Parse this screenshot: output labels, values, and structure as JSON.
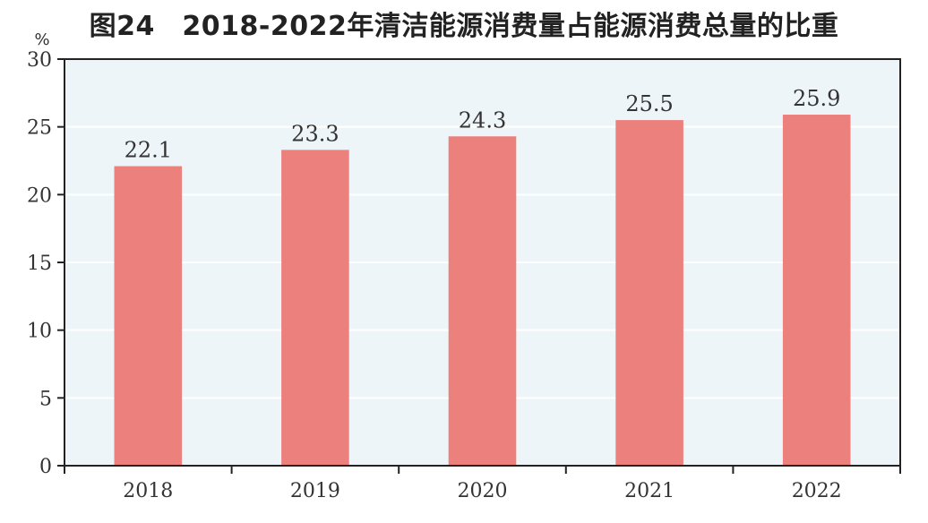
{
  "chart_data": {
    "type": "bar",
    "title": "图24　2018-2022年清洁能源消费量占能源消费总量的比重",
    "unit": "%",
    "categories": [
      "2018",
      "2019",
      "2020",
      "2021",
      "2022"
    ],
    "values": [
      22.1,
      23.3,
      24.3,
      25.5,
      25.9
    ],
    "data_labels": [
      "22.1",
      "23.3",
      "24.3",
      "25.5",
      "25.9"
    ],
    "y_ticks": [
      0,
      5,
      10,
      15,
      20,
      25,
      30
    ],
    "ylim": [
      0,
      30
    ],
    "xlabel": "",
    "ylabel": "",
    "grid": true,
    "legend": "none",
    "colors": {
      "bar": "#eb807d",
      "plot_background": "#eef5f8",
      "gridline": "#ffffff",
      "axis": "#222222",
      "text": "#333333"
    }
  }
}
